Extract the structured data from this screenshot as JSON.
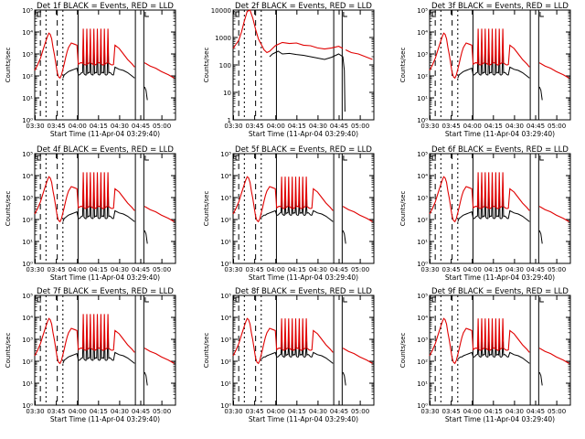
{
  "colors": {
    "events": "#000000",
    "lld": "#e00000",
    "axes": "#000000"
  },
  "chart_data": [
    {
      "type": "line",
      "title": "Det 1f BLACK = Events, RED = LLD",
      "xlabel": "Start Time (11-Apr-04 03:29:40)",
      "ylabel": "Counts/sec",
      "xticks": [
        "03:30",
        "03:45",
        "04:00",
        "04:15",
        "04:30",
        "04:45",
        "05:00"
      ],
      "yscale": "log",
      "ylim": [
        1,
        100000
      ],
      "yticks": [
        "10⁰",
        "10¹",
        "10²",
        "10³",
        "10⁴",
        "10⁵"
      ],
      "profile": "A"
    },
    {
      "type": "line",
      "title": "Det 2f BLACK = Events, RED = LLD",
      "xlabel": "Start Time (11-Apr-04 03:29:40)",
      "ylabel": "Counts/sec",
      "xticks": [
        "03:30",
        "03:45",
        "04:00",
        "04:15",
        "04:30",
        "04:45",
        "05:00"
      ],
      "yscale": "log",
      "ylim": [
        1,
        10000
      ],
      "yticks": [
        "1",
        "10",
        "100",
        "1000",
        "10000"
      ],
      "profile": "B"
    },
    {
      "type": "line",
      "title": "Det 3f BLACK = Events, RED = LLD",
      "xlabel": "Start Time (11-Apr-04 03:29:40)",
      "ylabel": "Counts/sec",
      "xticks": [
        "03:30",
        "03:45",
        "04:00",
        "04:15",
        "04:30",
        "04:45",
        "05:00"
      ],
      "yscale": "log",
      "ylim": [
        1,
        100000
      ],
      "yticks": [
        "10⁰",
        "10¹",
        "10²",
        "10³",
        "10⁴",
        "10⁵"
      ],
      "profile": "A"
    },
    {
      "type": "line",
      "title": "Det 4f BLACK = Events, RED = LLD",
      "xlabel": "Start Time (11-Apr-04 03:29:40)",
      "ylabel": "Counts/sec",
      "xticks": [
        "03:30",
        "03:45",
        "04:00",
        "04:15",
        "04:30",
        "04:45",
        "05:00"
      ],
      "yscale": "log",
      "ylim": [
        1,
        100000
      ],
      "yticks": [
        "10⁰",
        "10¹",
        "10²",
        "10³",
        "10⁴",
        "10⁵"
      ],
      "profile": "A"
    },
    {
      "type": "line",
      "title": "Det 5f BLACK = Events, RED = LLD",
      "xlabel": "Start Time (11-Apr-04 03:29:40)",
      "ylabel": "Counts/sec",
      "xticks": [
        "03:30",
        "03:45",
        "04:00",
        "04:15",
        "04:30",
        "04:45",
        "05:00"
      ],
      "yscale": "log",
      "ylim": [
        1,
        100000
      ],
      "yticks": [
        "10⁰",
        "10¹",
        "10²",
        "10³",
        "10⁴",
        "10⁵"
      ],
      "profile": "C"
    },
    {
      "type": "line",
      "title": "Det 6f BLACK = Events, RED = LLD",
      "xlabel": "Start Time (11-Apr-04 03:29:40)",
      "ylabel": "Counts/sec",
      "xticks": [
        "03:30",
        "03:45",
        "04:00",
        "04:15",
        "04:30",
        "04:45",
        "05:00"
      ],
      "yscale": "log",
      "ylim": [
        1,
        100000
      ],
      "yticks": [
        "10⁰",
        "10¹",
        "10²",
        "10³",
        "10⁴",
        "10⁵"
      ],
      "profile": "A"
    },
    {
      "type": "line",
      "title": "Det 7f BLACK = Events, RED = LLD",
      "xlabel": "Start Time (11-Apr-04 03:29:40)",
      "ylabel": "Counts/sec",
      "xticks": [
        "03:30",
        "03:45",
        "04:00",
        "04:15",
        "04:30",
        "04:45",
        "05:00"
      ],
      "yscale": "log",
      "ylim": [
        1,
        100000
      ],
      "yticks": [
        "10⁰",
        "10¹",
        "10²",
        "10³",
        "10⁴",
        "10⁵"
      ],
      "profile": "A"
    },
    {
      "type": "line",
      "title": "Det 8f BLACK = Events, RED = LLD",
      "xlabel": "Start Time (11-Apr-04 03:29:40)",
      "ylabel": "Counts/sec",
      "xticks": [
        "03:30",
        "03:45",
        "04:00",
        "04:15",
        "04:30",
        "04:45",
        "05:00"
      ],
      "yscale": "log",
      "ylim": [
        1,
        100000
      ],
      "yticks": [
        "10⁰",
        "10¹",
        "10²",
        "10³",
        "10⁴",
        "10⁵"
      ],
      "profile": "C"
    },
    {
      "type": "line",
      "title": "Det 9f BLACK = Events, RED = LLD",
      "xlabel": "Start Time (11-Apr-04 03:29:40)",
      "ylabel": "Counts/sec",
      "xticks": [
        "03:30",
        "03:45",
        "04:00",
        "04:15",
        "04:30",
        "04:45",
        "05:00"
      ],
      "yscale": "log",
      "ylim": [
        1,
        100000
      ],
      "yticks": [
        "10⁰",
        "10¹",
        "10²",
        "10³",
        "10⁴",
        "10⁵"
      ],
      "profile": "C"
    }
  ]
}
